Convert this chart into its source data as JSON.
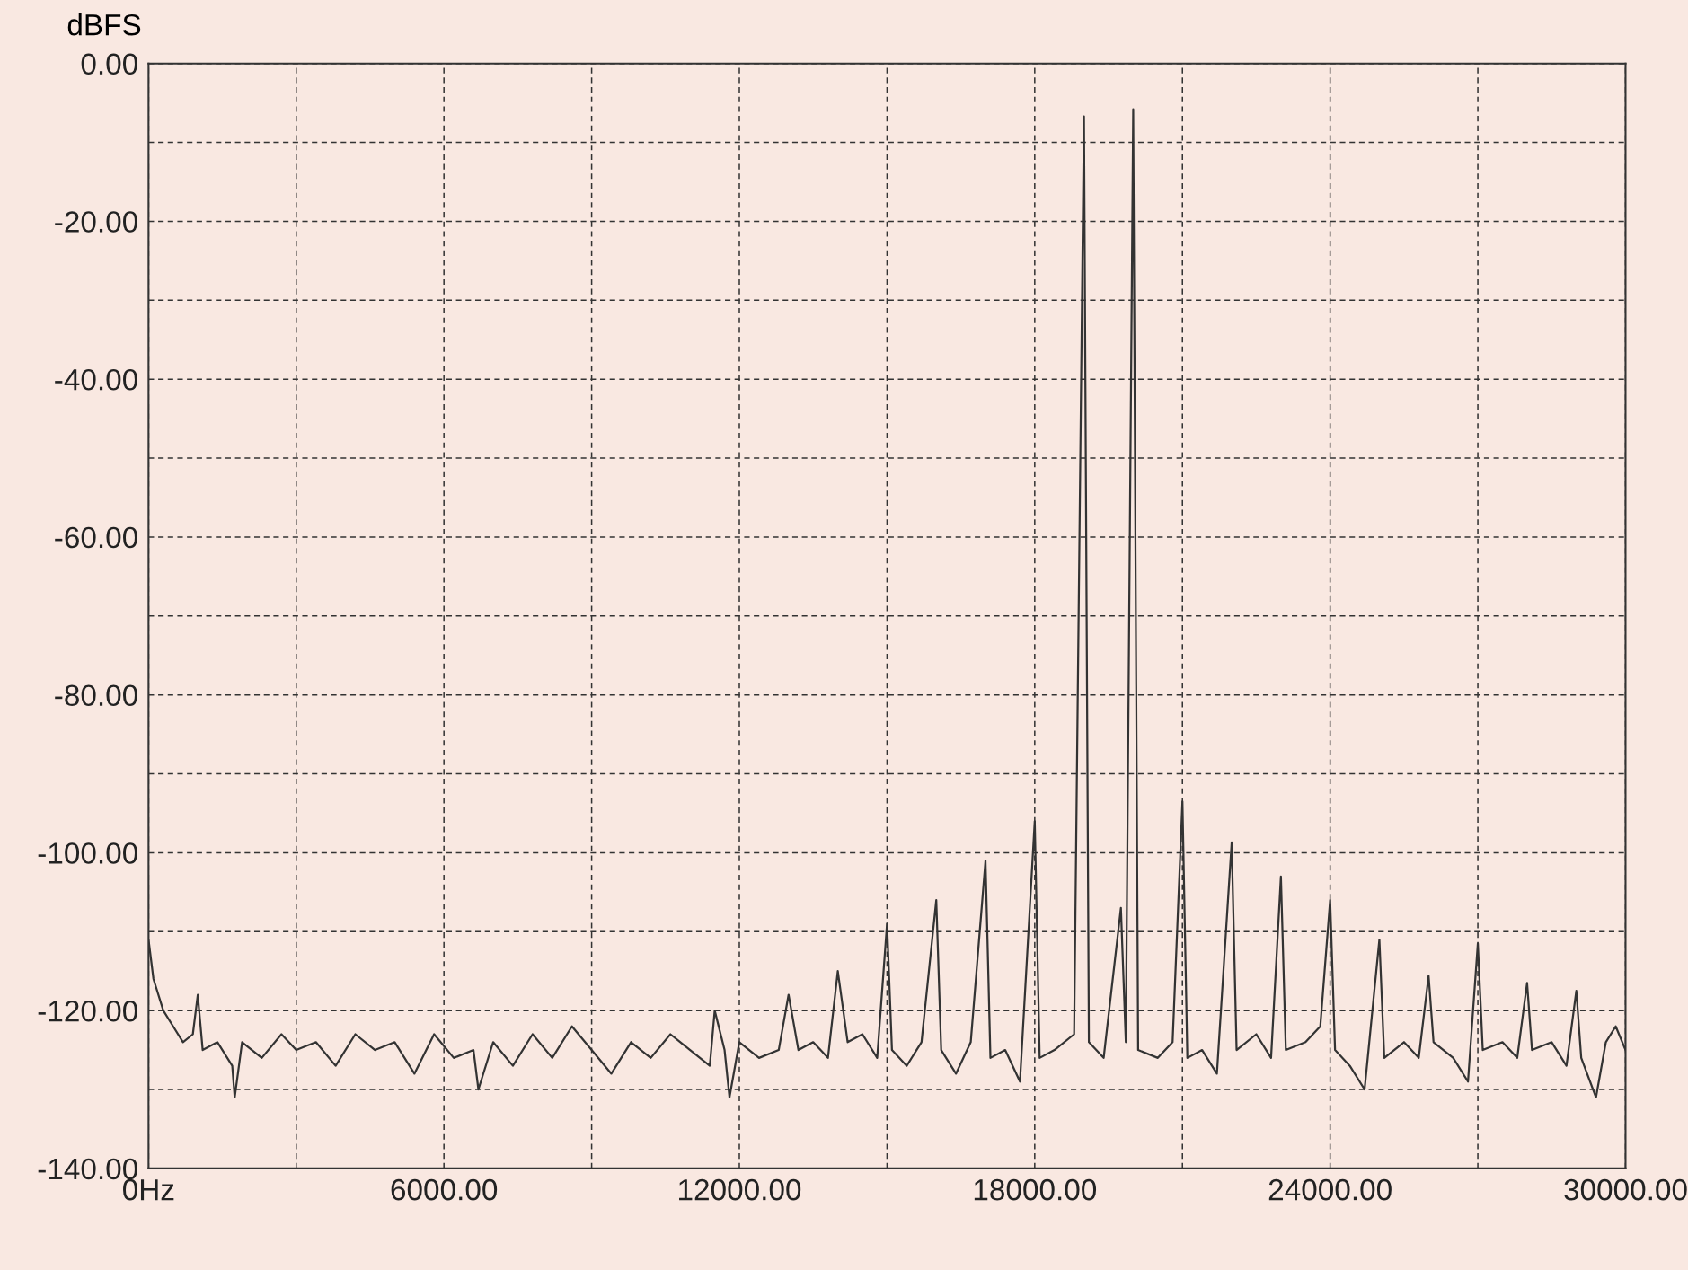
{
  "chart_data": {
    "type": "line",
    "ylabel": "dBFS",
    "grid": true,
    "marker": "none",
    "line_style": "solid",
    "xlim": [
      0,
      30000
    ],
    "ylim": [
      -140,
      0
    ],
    "xticks": [
      {
        "value": 0,
        "label": "0Hz"
      },
      {
        "value": 3000,
        "label": null
      },
      {
        "value": 6000,
        "label": "6000.00"
      },
      {
        "value": 9000,
        "label": null
      },
      {
        "value": 12000,
        "label": "12000.00"
      },
      {
        "value": 15000,
        "label": null
      },
      {
        "value": 18000,
        "label": "18000.00"
      },
      {
        "value": 21000,
        "label": null
      },
      {
        "value": 24000,
        "label": "24000.00"
      },
      {
        "value": 27000,
        "label": null
      },
      {
        "value": 30000,
        "label": "30000.00"
      }
    ],
    "yticks": [
      {
        "value": 0,
        "label": "0.00"
      },
      {
        "value": -10,
        "label": null
      },
      {
        "value": -20,
        "label": "-20.00"
      },
      {
        "value": -30,
        "label": null
      },
      {
        "value": -40,
        "label": "-40.00"
      },
      {
        "value": -50,
        "label": null
      },
      {
        "value": -60,
        "label": "-60.00"
      },
      {
        "value": -70,
        "label": null
      },
      {
        "value": -80,
        "label": "-80.00"
      },
      {
        "value": -90,
        "label": null
      },
      {
        "value": -100,
        "label": "-100.00"
      },
      {
        "value": -110,
        "label": null
      },
      {
        "value": -120,
        "label": "-120.00"
      },
      {
        "value": -130,
        "label": null
      },
      {
        "value": -140,
        "label": "-140.00"
      }
    ],
    "series": [
      {
        "color": "#333333",
        "x": [
          0,
          100,
          300,
          500,
          700,
          900,
          1000,
          1100,
          1400,
          1700,
          1750,
          1900,
          2300,
          2700,
          3000,
          3400,
          3800,
          4200,
          4600,
          5000,
          5400,
          5800,
          6200,
          6600,
          6700,
          7000,
          7400,
          7800,
          8200,
          8600,
          9000,
          9400,
          9800,
          10200,
          10600,
          11000,
          11400,
          11500,
          11700,
          11800,
          12000,
          12400,
          12800,
          13000,
          13200,
          13500,
          13800,
          14000,
          14200,
          14500,
          14800,
          15000,
          15100,
          15400,
          15700,
          16000,
          16100,
          16400,
          16700,
          17000,
          17100,
          17400,
          17700,
          18000,
          18100,
          18400,
          18800,
          19000,
          19100,
          19400,
          19750,
          19850,
          20000,
          20100,
          20500,
          20800,
          21000,
          21100,
          21400,
          21700,
          22000,
          22100,
          22500,
          22800,
          23000,
          23100,
          23500,
          23800,
          24000,
          24100,
          24400,
          24700,
          25000,
          25100,
          25500,
          25800,
          26000,
          26100,
          26500,
          26800,
          27000,
          27100,
          27500,
          27800,
          28000,
          28100,
          28500,
          28800,
          29000,
          29100,
          29400,
          29600,
          29800,
          30000
        ],
        "values": [
          -111,
          -116,
          -120,
          -122,
          -124,
          -123,
          -118,
          -125,
          -124,
          -127,
          -131,
          -124,
          -126,
          -123,
          -125,
          -124,
          -127,
          -123,
          -125,
          -124,
          -128,
          -123,
          -126,
          -125,
          -130,
          -124,
          -127,
          -123,
          -126,
          -122,
          -125,
          -128,
          -124,
          -126,
          -123,
          -125,
          -127,
          -120,
          -125,
          -131,
          -124,
          -126,
          -125,
          -118,
          -125,
          -124,
          -126,
          -115,
          -124,
          -123,
          -126,
          -109,
          -125,
          -127,
          -124,
          -106,
          -125,
          -128,
          -124,
          -101,
          -126,
          -125,
          -129,
          -96,
          -126,
          -125,
          -123,
          -6.7,
          -124,
          -126,
          -107,
          -124,
          -5.8,
          -125,
          -126,
          -124,
          -93.5,
          -126,
          -125,
          -128,
          -98.7,
          -125,
          -123,
          -126,
          -103,
          -125,
          -124,
          -122,
          -106,
          -125,
          -127,
          -130,
          -111,
          -126,
          -124,
          -126,
          -115.6,
          -124,
          -126,
          -129,
          -111.5,
          -125,
          -124,
          -126,
          -116.5,
          -125,
          -124,
          -127,
          -117.5,
          -126,
          -131,
          -124,
          -122,
          -125
        ]
      }
    ]
  }
}
